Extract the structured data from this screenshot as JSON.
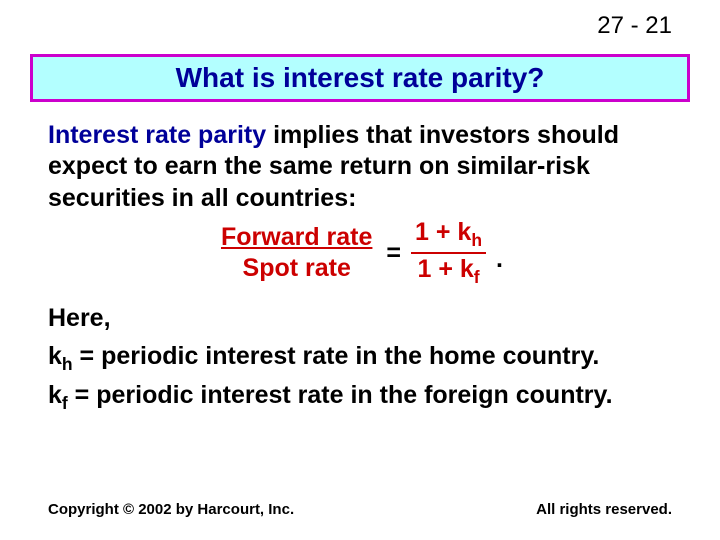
{
  "page_number": "27 - 21",
  "title": {
    "text": "What is interest rate parity?",
    "text_color": "#000099",
    "background_color": "#b3ffff",
    "border_color": "#cc00cc",
    "fontsize": 28
  },
  "paragraph": {
    "highlight_term": "Interest rate parity",
    "highlight_color": "#000099",
    "rest": " implies that investors should expect to earn the same return on similar-risk securities in all countries:",
    "fontsize": 25
  },
  "formula": {
    "left_top": "Forward rate",
    "left_bottom": "Spot rate",
    "left_color": "#cc0000",
    "right_top_pre": "1 + k",
    "right_top_sub": "h",
    "right_bottom_pre": "1 + k",
    "right_bottom_sub": "f",
    "right_color": "#cc0000",
    "equals": "=",
    "period": "."
  },
  "definitions": {
    "here": "Here,",
    "kh_pre": "k",
    "kh_sub": "h",
    "kh_rest": " = periodic interest rate in the home country.",
    "kf_pre": "k",
    "kf_sub": "f",
    "kf_rest": " = periodic interest rate in the foreign country."
  },
  "footer": {
    "left": "Copyright © 2002 by Harcourt, Inc.",
    "right": "All rights reserved."
  },
  "colors": {
    "background": "#ffffff",
    "body_text": "#000000"
  }
}
